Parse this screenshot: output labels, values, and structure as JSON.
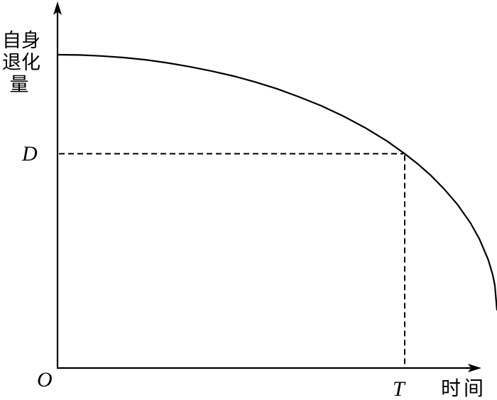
{
  "figure": {
    "ink_color": "#000000",
    "background_color": "#ffffff",
    "y_axis_label": "自身退化量",
    "y_axis_label_lines": [
      "自身",
      "退化",
      "量"
    ],
    "x_axis_label": "时间",
    "origin_label": "O",
    "level_label": "D",
    "time_label": "T"
  },
  "chart_data": {
    "type": "line",
    "title": "",
    "xlabel": "时间",
    "ylabel": "自身退化量",
    "grid": false,
    "legend": false,
    "axis_ticks": "none (qualitative sketch, arrows on both axes)",
    "curve_shape": "concave-down decreasing quarter-ellipse arc: nearly flat at start, falls increasingly steeply; clipped by right edge of figure before reaching the time axis",
    "x_range_shown": [
      0,
      1
    ],
    "y_range_shown": [
      0,
      1
    ],
    "series": [
      {
        "name": "自身退化量",
        "x": [
          0,
          0.05,
          0.1,
          0.15,
          0.2,
          0.25,
          0.3,
          0.35,
          0.4,
          0.45,
          0.5,
          0.55,
          0.6,
          0.65,
          0.7,
          0.75,
          0.79,
          0.82,
          0.85,
          0.88,
          0.91,
          0.94,
          0.96,
          0.98,
          0.99,
          0.995,
          1.0
        ],
        "y": [
          1.0,
          0.999,
          0.996,
          0.991,
          0.984,
          0.974,
          0.962,
          0.948,
          0.932,
          0.913,
          0.891,
          0.865,
          0.837,
          0.804,
          0.767,
          0.724,
          0.684,
          0.651,
          0.614,
          0.571,
          0.522,
          0.462,
          0.412,
          0.346,
          0.299,
          0.265,
          0.184
        ]
      }
    ],
    "annotations": [
      {
        "label": "D",
        "axis": "y",
        "value": 0.684,
        "style": "dashed horizontal guide from y-axis to curve"
      },
      {
        "label": "T",
        "axis": "x",
        "value": 0.79,
        "style": "dashed vertical guide from curve down to x-axis"
      },
      {
        "label": "O",
        "position": "origin"
      }
    ],
    "point_of_interest": {
      "x_label": "T",
      "y_label": "D",
      "meaning": "curve passes through (T, D)"
    }
  }
}
